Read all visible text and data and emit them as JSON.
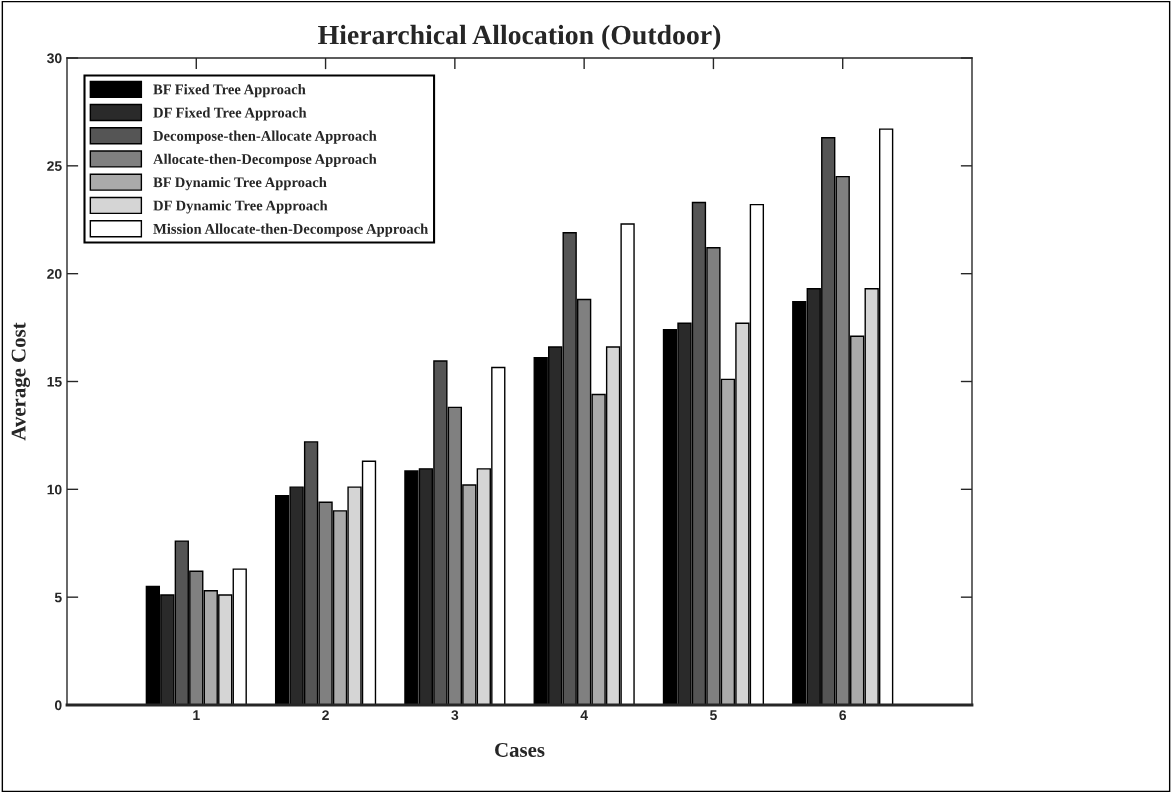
{
  "chart_data": {
    "type": "bar",
    "title": "Hierarchical Allocation (Outdoor)",
    "xlabel": "Cases",
    "ylabel": "Average Cost",
    "categories": [
      "1",
      "2",
      "3",
      "4",
      "5",
      "6"
    ],
    "series": [
      {
        "name": "BF Fixed Tree Approach",
        "color": "#000000",
        "values": [
          5.5,
          9.7,
          10.85,
          16.1,
          17.4,
          18.7
        ]
      },
      {
        "name": "DF Fixed Tree Approach",
        "color": "#2a2a2a",
        "values": [
          5.1,
          10.1,
          10.95,
          16.6,
          17.7,
          19.3
        ]
      },
      {
        "name": "Decompose-then-Allocate Approach",
        "color": "#555555",
        "values": [
          7.6,
          12.2,
          15.95,
          21.9,
          23.3,
          26.3
        ]
      },
      {
        "name": "Allocate-then-Decompose Approach",
        "color": "#808080",
        "values": [
          6.2,
          9.4,
          13.8,
          18.8,
          21.2,
          24.5
        ]
      },
      {
        "name": "BF Dynamic Tree Approach",
        "color": "#aaaaaa",
        "values": [
          5.3,
          9.0,
          10.2,
          14.4,
          15.1,
          17.1
        ]
      },
      {
        "name": "DF Dynamic Tree Approach",
        "color": "#d5d5d5",
        "values": [
          5.1,
          10.1,
          10.95,
          16.6,
          17.7,
          19.3
        ]
      },
      {
        "name": "Mission Allocate-then-Decompose Approach",
        "color": "#ffffff",
        "values": [
          6.3,
          11.3,
          15.65,
          22.3,
          23.2,
          26.7
        ]
      }
    ],
    "ylim": [
      0,
      30
    ],
    "yticks": [
      0,
      5,
      10,
      15,
      20,
      25,
      30
    ],
    "grid": false,
    "legend": "top left"
  }
}
